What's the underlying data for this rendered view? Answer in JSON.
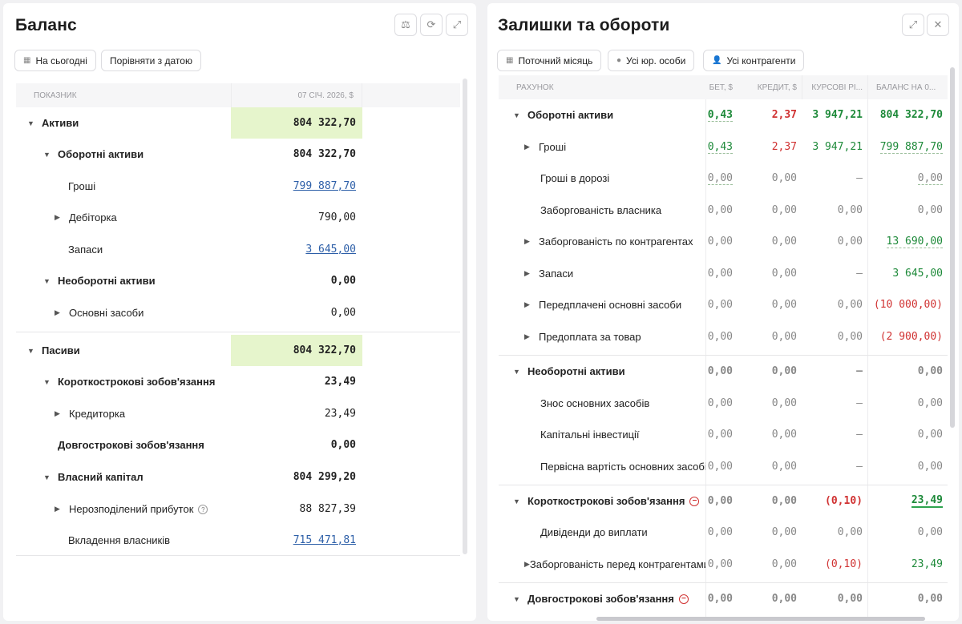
{
  "left": {
    "title": "Баланс",
    "filters": {
      "today": "На сьогодні",
      "compare": "Порівняти з датою"
    },
    "columns": {
      "indicator": "ПОКАЗНИК",
      "date": "07 СІЧ. 2026, $"
    },
    "rows": [
      {
        "label": "Активи",
        "value": "804 322,70"
      },
      {
        "label": "Оборотні активи",
        "value": "804 322,70"
      },
      {
        "label": "Гроші",
        "value": "799 887,70"
      },
      {
        "label": "Дебіторка",
        "value": "790,00"
      },
      {
        "label": "Запаси",
        "value": "3 645,00"
      },
      {
        "label": "Необоротні активи",
        "value": "0,00"
      },
      {
        "label": "Основні засоби",
        "value": "0,00"
      },
      {
        "label": "Пасиви",
        "value": "804 322,70"
      },
      {
        "label": "Короткострокові зобов'язання",
        "value": "23,49"
      },
      {
        "label": "Кредиторка",
        "value": "23,49"
      },
      {
        "label": "Довгострокові зобов'язання",
        "value": "0,00"
      },
      {
        "label": "Власний капітал",
        "value": "804 299,20"
      },
      {
        "label": "Нерозподілений прибуток",
        "value": "88 827,39"
      },
      {
        "label": "Вкладення власників",
        "value": "715 471,81"
      }
    ]
  },
  "right": {
    "title": "Залишки та обороти",
    "filters": {
      "month": "Поточний місяць",
      "entities": "Усі юр. особи",
      "counterparties": "Усі контрагенти"
    },
    "columns": {
      "account": "РАХУНОК",
      "debit": "БЕТ, $",
      "credit": "КРЕДИТ, $",
      "fx": "КУРСОВІ РІ...",
      "balance": "БАЛАНС НА 0..."
    },
    "rows": [
      {
        "label": "Оборотні активи",
        "debit": "0,43",
        "credit": "2,37",
        "fx": "3 947,21",
        "balance": "804 322,70"
      },
      {
        "label": "Гроші",
        "debit": "0,43",
        "credit": "2,37",
        "fx": "3 947,21",
        "balance": "799 887,70"
      },
      {
        "label": "Гроші в дорозі",
        "debit": "0,00",
        "credit": "0,00",
        "fx": "—",
        "balance": "0,00"
      },
      {
        "label": "Заборгованість власника",
        "debit": "0,00",
        "credit": "0,00",
        "fx": "0,00",
        "balance": "0,00"
      },
      {
        "label": "Заборгованість по контрагентах",
        "debit": "0,00",
        "credit": "0,00",
        "fx": "0,00",
        "balance": "13 690,00"
      },
      {
        "label": "Запаси",
        "debit": "0,00",
        "credit": "0,00",
        "fx": "—",
        "balance": "3 645,00"
      },
      {
        "label": "Передплачені основні засоби",
        "debit": "0,00",
        "credit": "0,00",
        "fx": "0,00",
        "balance": "(10 000,00)"
      },
      {
        "label": "Предоплата за товар",
        "debit": "0,00",
        "credit": "0,00",
        "fx": "0,00",
        "balance": "(2 900,00)"
      },
      {
        "label": "Необоротні активи",
        "debit": "0,00",
        "credit": "0,00",
        "fx": "—",
        "balance": "0,00"
      },
      {
        "label": "Знос основних засобів",
        "debit": "0,00",
        "credit": "0,00",
        "fx": "—",
        "balance": "0,00"
      },
      {
        "label": "Капітальні інвестиції",
        "debit": "0,00",
        "credit": "0,00",
        "fx": "—",
        "balance": "0,00"
      },
      {
        "label": "Первісна вартість основних засобів",
        "debit": "0,00",
        "credit": "0,00",
        "fx": "—",
        "balance": "0,00"
      },
      {
        "label": "Короткострокові зобов'язання",
        "debit": "0,00",
        "credit": "0,00",
        "fx": "(0,10)",
        "balance": "23,49"
      },
      {
        "label": "Дивіденди до виплати",
        "debit": "0,00",
        "credit": "0,00",
        "fx": "0,00",
        "balance": "0,00"
      },
      {
        "label": "Заборгованість перед контрагентами",
        "debit": "0,00",
        "credit": "0,00",
        "fx": "(0,10)",
        "balance": "23,49"
      },
      {
        "label": "Довгострокові зобов'язання",
        "debit": "0,00",
        "credit": "0,00",
        "fx": "0,00",
        "balance": "0,00"
      }
    ]
  }
}
